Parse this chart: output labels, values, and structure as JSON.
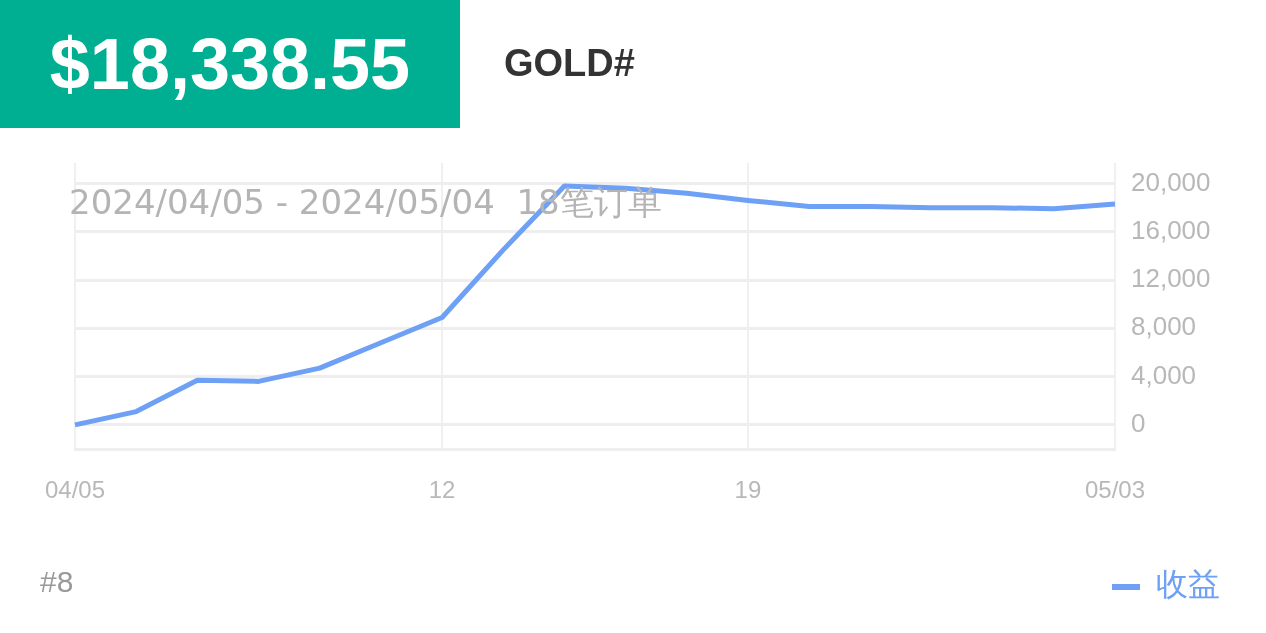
{
  "chart_data": {
    "type": "line",
    "title": "$18,338.55",
    "subtitle": "GOLD#",
    "annotations": [
      "2024/04/05 - 2024/05/04  18笔订单",
      "#8"
    ],
    "categories": [
      "04/05",
      null,
      null,
      null,
      null,
      null,
      "12",
      null,
      null,
      null,
      null,
      "19",
      null,
      null,
      null,
      null,
      null,
      "05/03"
    ],
    "series": [
      {
        "name": "收益",
        "color": "#6ea0f5",
        "values": [
          0,
          1100,
          3700,
          3600,
          4700,
          6800,
          8900,
          14500,
          19800,
          19600,
          19200,
          18600,
          18100,
          18100,
          18000,
          18000,
          17900,
          18300
        ]
      }
    ],
    "ylim": [
      -2000,
      21700
    ],
    "yticks": [
      0,
      {
        "value": 4000,
        "label": "4,000"
      },
      {
        "value": 8000,
        "label": "8,000"
      },
      {
        "value": 12000,
        "label": "12,000"
      },
      {
        "value": 16000,
        "label": "16,000"
      },
      {
        "value": 20000,
        "label": "20,000"
      }
    ],
    "grid": true,
    "legend": "bottom right",
    "marker": "none",
    "line_style": "solid"
  }
}
